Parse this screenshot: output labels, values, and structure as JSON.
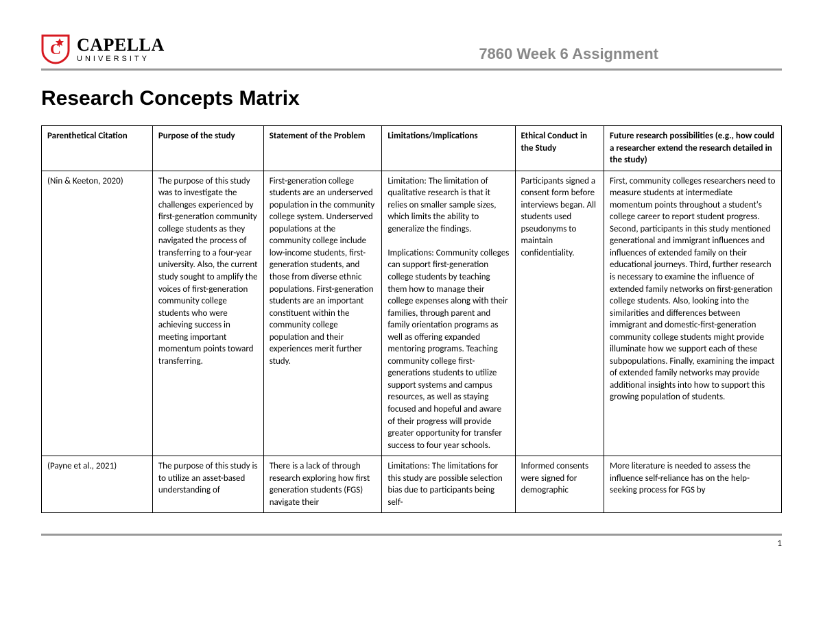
{
  "logo": {
    "main": "CAPELLA",
    "sub": "UNIVERSITY",
    "shield_color": "#d71920",
    "shield_text_color": "#ffffff"
  },
  "header": {
    "assignment_title": "7860 Week 6 Assignment",
    "rule_color": "#999999"
  },
  "page": {
    "title": "Research Concepts Matrix",
    "page_number": "1"
  },
  "table": {
    "columns": [
      {
        "label": "Parenthetical Citation",
        "width_pct": 15
      },
      {
        "label": "Purpose of the study",
        "width_pct": 15
      },
      {
        "label": "Statement of the Problem",
        "width_pct": 16
      },
      {
        "label": "Limitations/Implications",
        "width_pct": 18
      },
      {
        "label": "Ethical Conduct in the Study",
        "width_pct": 12
      },
      {
        "label": "Future research possibilities (e.g., how could a researcher extend the research detailed in the study)",
        "width_pct": 24
      }
    ],
    "rows": [
      {
        "cells": [
          "(Nin & Keeton, 2020)",
          "The purpose of this study was to investigate the challenges experienced by first-generation community college students as they navigated the process of transferring to a four-year university. Also, the current study sought to amplify the voices of first-generation community college students who were achieving success in meeting important momentum points toward transferring.",
          "First-generation college students are an underserved population in the community college system. Underserved populations at the community college include low-income students, first-generation students, and those from diverse ethnic populations. First-generation students are an important constituent within the community college population and their experiences merit further study.",
          "Limitation: The limitation of qualitative research is that it relies on smaller sample sizes, which limits the ability to generalize the findings.\n\nImplications: Community colleges can support first-generation college students by teaching them how to manage their college expenses along with their families, through parent and family orientation programs as well as offering expanded mentoring programs. Teaching community college first-generations students to utilize support systems and campus resources, as well as staying focused and hopeful and aware of their progress will provide greater opportunity for transfer success to four year schools.",
          "Participants signed a consent form before interviews began. All students used pseudonyms to maintain confidentiality.",
          "First, community colleges researchers need to measure students at intermediate momentum points throughout a student's college career to report student progress. Second, participants in this study mentioned generational and immigrant influences and influences of extended family on their educational journeys. Third, further research is necessary to examine the influence of extended family networks on first-generation college students. Also, looking into the similarities and differences between immigrant and domestic-first-generation community college students might provide illuminate how we support each of these subpopulations. Finally, examining the impact of extended family networks may provide additional insights into how to support this growing population of students."
        ]
      },
      {
        "cells": [
          "(Payne et al., 2021)",
          "The purpose of this study is to utilize an asset-based understanding of",
          "There is a lack of through research exploring how first generation students (FGS) navigate their",
          "Limitations: The limitations for this study are possible selection bias due to participants being self-",
          "Informed consents were signed for demographic",
          "More literature is needed to assess the influence self-reliance has on the help-seeking process for FGS by"
        ]
      }
    ],
    "border_color": "#000000",
    "font_size_pt": 10,
    "header_font_weight": "bold"
  }
}
